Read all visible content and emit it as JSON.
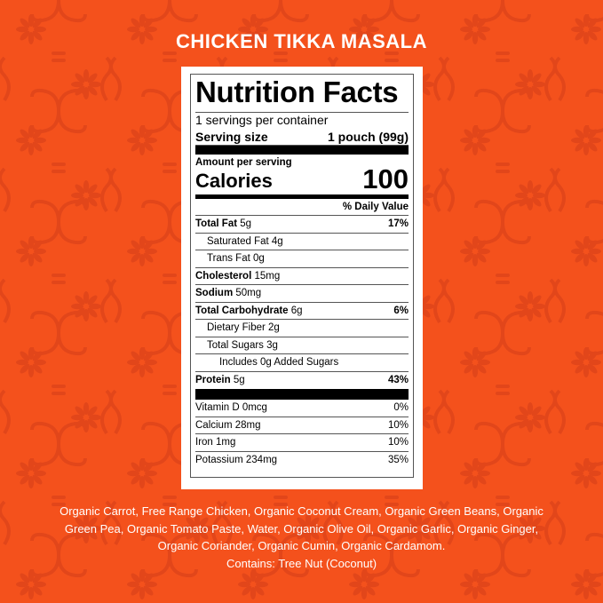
{
  "colors": {
    "background": "#f4511c",
    "pattern": "#e2461a",
    "text_on_bg": "#ffffff"
  },
  "title": "CHICKEN TIKKA MASALA",
  "label": {
    "heading": "Nutrition Facts",
    "servings": "1 servings per container",
    "serving_size_label": "Serving size",
    "serving_size_value": "1 pouch (99g)",
    "amount_per_serving": "Amount per serving",
    "calories_label": "Calories",
    "calories_value": "100",
    "daily_value_header": "% Daily Value",
    "nutrients": [
      {
        "name": "Total Fat",
        "amount": "5g",
        "dv": "17%"
      },
      {
        "name": "Saturated Fat 4g",
        "amount": "",
        "dv": ""
      },
      {
        "name": "Trans Fat 0g",
        "amount": "",
        "dv": ""
      },
      {
        "name": "Cholesterol",
        "amount": "15mg",
        "dv": ""
      },
      {
        "name": "Sodium",
        "amount": "50mg",
        "dv": ""
      },
      {
        "name": "Total Carbohydrate",
        "amount": "6g",
        "dv": "6%"
      },
      {
        "name": "Dietary Fiber 2g",
        "amount": "",
        "dv": ""
      },
      {
        "name": "Total Sugars 3g",
        "amount": "",
        "dv": ""
      },
      {
        "name": "Includes 0g Added Sugars",
        "amount": "",
        "dv": ""
      },
      {
        "name": "Protein",
        "amount": "5g",
        "dv": "43%"
      }
    ],
    "vitamins": [
      {
        "name": "Vitamin D 0mcg",
        "dv": "0%"
      },
      {
        "name": "Calcium 28mg",
        "dv": "10%"
      },
      {
        "name": "Iron 1mg",
        "dv": "10%"
      },
      {
        "name": "Potassium 234mg",
        "dv": "35%"
      }
    ]
  },
  "ingredients": "Organic Carrot, Free Range Chicken, Organic Coconut Cream, Organic Green Beans, Organic Green Pea, Organic Tomato Paste, Water, Organic Olive Oil, Organic Garlic, Organic Ginger, Organic Coriander, Organic Cumin, Organic Cardamom.",
  "allergens": "Contains: Tree Nut (Coconut)"
}
